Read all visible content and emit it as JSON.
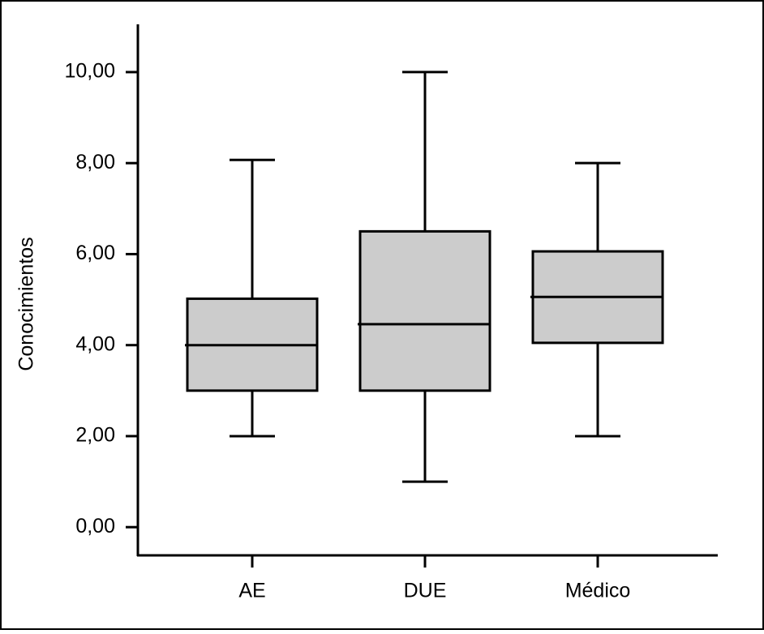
{
  "chart_data": {
    "type": "box",
    "y_label": "Conocimientos",
    "categories": [
      "AE",
      "DUE",
      "Médico"
    ],
    "whislo": [
      2,
      1,
      2
    ],
    "q1": [
      3,
      3,
      4.05
    ],
    "median": [
      4,
      4.46,
      5.06
    ],
    "q3": [
      5.02,
      6.5,
      6.06
    ],
    "whishi": [
      8.07,
      10,
      8
    ],
    "color": "#cccccc",
    "ylim": [
      -0.62,
      11.05
    ],
    "yticks": [
      {
        "value": 0,
        "label": "0,00"
      },
      {
        "value": 2,
        "label": "2,00"
      },
      {
        "value": 4,
        "label": "4,00"
      },
      {
        "value": 6,
        "label": "6,00"
      },
      {
        "value": 8,
        "label": "8,00"
      },
      {
        "value": 10,
        "label": "10,00"
      }
    ]
  }
}
